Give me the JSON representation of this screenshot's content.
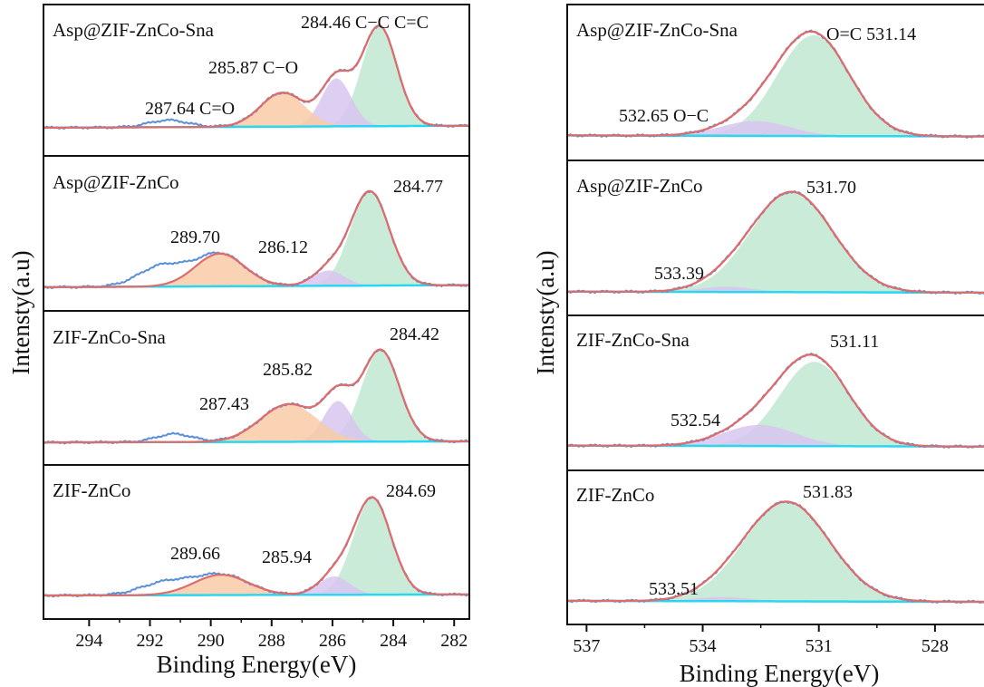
{
  "colors": {
    "raw": "#5b8fd6",
    "envelope": "#e06b6b",
    "background": "#2ad7f0",
    "c_cc": "#bfe8d0",
    "c_co": "#d8c6f0",
    "c_c_eq_o": "#f8cba7",
    "o_c_eq_o": "#bfe8d0",
    "o_c_o": "#d8c6f0"
  },
  "panels": [
    {
      "id": "C1s",
      "ylabel": "Intensty(a.u)",
      "xlabel": "Binding Energy(eV)",
      "xticks": [
        294,
        292,
        290,
        288,
        286,
        284,
        282
      ],
      "xtick_labels": [
        "294",
        "292",
        "290",
        "288",
        "286",
        "284",
        "282"
      ],
      "xlim": [
        295.5,
        281.5
      ],
      "stacks": [
        {
          "label": "Asp@ZIF-ZnCo-Sna"
        },
        {
          "label": "Asp@ZIF-ZnCo"
        },
        {
          "label": "ZIF-ZnCo-Sna"
        },
        {
          "label": "ZIF-ZnCo"
        }
      ]
    },
    {
      "id": "O1s",
      "ylabel": "Intensty(a.u)",
      "xlabel": "Binding Energy(eV)",
      "xticks": [
        537,
        534,
        531,
        528
      ],
      "xtick_labels": [
        "537",
        "534",
        "531",
        "528"
      ],
      "xlim": [
        537.5,
        526.5
      ],
      "stacks": [
        {
          "label": "Asp@ZIF-ZnCo-Sna"
        },
        {
          "label": "Asp@ZIF-ZnCo"
        },
        {
          "label": "ZIF-ZnCo-Sna"
        },
        {
          "label": "ZIF-ZnCo"
        }
      ]
    }
  ],
  "chart_data": [
    {
      "type": "area",
      "xlabel": "Binding Energy(eV)",
      "ylabel": "Intensty(a.u)",
      "xlim": [
        295.5,
        281.5
      ],
      "x_reversed": true,
      "grid": false,
      "stacks": [
        {
          "sample": "Asp@ZIF-ZnCo-Sna",
          "baseline": [
            0.1,
            0.12
          ],
          "peaks": [
            {
              "center": 284.46,
              "amp": 1.0,
              "fwhm": 1.35,
              "label": "284.46 C−C C=C",
              "fill": "c_cc"
            },
            {
              "center": 285.87,
              "amp": 0.48,
              "fwhm": 1.15,
              "label": "285.87 C−O",
              "fill": "c_co"
            },
            {
              "center": 287.64,
              "amp": 0.34,
              "fwhm": 1.7,
              "label": "287.64 C=O",
              "fill": "c_c_eq_o"
            }
          ],
          "raw_extra": [
            {
              "center": 291.4,
              "amp": 0.07,
              "fwhm": 1.5
            }
          ]
        },
        {
          "sample": "Asp@ZIF-ZnCo",
          "baseline": [
            0.05,
            0.07
          ],
          "peaks": [
            {
              "center": 284.77,
              "amp": 0.92,
              "fwhm": 1.5,
              "label": "284.77",
              "fill": "c_cc"
            },
            {
              "center": 286.12,
              "amp": 0.15,
              "fwhm": 1.2,
              "label": "286.12",
              "fill": "c_co"
            },
            {
              "center": 289.7,
              "amp": 0.32,
              "fwhm": 1.9,
              "label": "289.70",
              "fill": "c_c_eq_o"
            }
          ],
          "raw_extra": [
            {
              "center": 291.6,
              "amp": 0.2,
              "fwhm": 1.8
            }
          ]
        },
        {
          "sample": "ZIF-ZnCo-Sna",
          "baseline": [
            0.04,
            0.05
          ],
          "peaks": [
            {
              "center": 284.42,
              "amp": 0.9,
              "fwhm": 1.45,
              "label": "284.42",
              "fill": "c_cc"
            },
            {
              "center": 285.82,
              "amp": 0.4,
              "fwhm": 1.1,
              "label": "285.82",
              "fill": "c_co"
            },
            {
              "center": 287.43,
              "amp": 0.37,
              "fwhm": 2.2,
              "label": "287.43",
              "fill": "c_c_eq_o"
            }
          ],
          "raw_extra": [
            {
              "center": 291.2,
              "amp": 0.08,
              "fwhm": 1.4
            }
          ]
        },
        {
          "sample": "ZIF-ZnCo",
          "baseline": [
            0.05,
            0.06
          ],
          "peaks": [
            {
              "center": 284.69,
              "amp": 0.95,
              "fwhm": 1.45,
              "label": "284.69",
              "fill": "c_cc"
            },
            {
              "center": 285.94,
              "amp": 0.18,
              "fwhm": 1.2,
              "label": "285.94",
              "fill": "c_co"
            },
            {
              "center": 289.66,
              "amp": 0.2,
              "fwhm": 2.1,
              "label": "289.66",
              "fill": "c_c_eq_o"
            }
          ],
          "raw_extra": [
            {
              "center": 291.5,
              "amp": 0.12,
              "fwhm": 1.9
            }
          ]
        }
      ]
    },
    {
      "type": "area",
      "xlabel": "Binding Energy(eV)",
      "ylabel": "Intensty(a.u)",
      "xlim": [
        537.5,
        526.5
      ],
      "x_reversed": true,
      "grid": false,
      "stacks": [
        {
          "sample": "Asp@ZIF-ZnCo-Sna",
          "baseline": [
            0.03,
            0.02
          ],
          "peaks": [
            {
              "center": 531.14,
              "amp": 0.95,
              "fwhm": 2.2,
              "label": "O=C 531.14",
              "fill": "o_c_eq_o"
            },
            {
              "center": 532.65,
              "amp": 0.14,
              "fwhm": 2.1,
              "label": "532.65 O−C",
              "fill": "o_c_o"
            }
          ],
          "raw_extra": []
        },
        {
          "sample": "Asp@ZIF-ZnCo",
          "baseline": [
            0.02,
            0.01
          ],
          "peaks": [
            {
              "center": 531.7,
              "amp": 0.95,
              "fwhm": 2.5,
              "label": "531.70",
              "fill": "o_c_eq_o"
            },
            {
              "center": 533.39,
              "amp": 0.05,
              "fwhm": 1.6,
              "label": "533.39",
              "fill": "o_c_o"
            }
          ],
          "raw_extra": []
        },
        {
          "sample": "ZIF-ZnCo-Sna",
          "baseline": [
            0.03,
            0.02
          ],
          "peaks": [
            {
              "center": 531.11,
              "amp": 0.8,
              "fwhm": 2.1,
              "label": "531.11",
              "fill": "o_c_eq_o"
            },
            {
              "center": 532.54,
              "amp": 0.2,
              "fwhm": 2.2,
              "label": "532.54",
              "fill": "o_c_o"
            }
          ],
          "raw_extra": []
        },
        {
          "sample": "ZIF-ZnCo",
          "baseline": [
            0.02,
            0.01
          ],
          "peaks": [
            {
              "center": 531.83,
              "amp": 0.95,
              "fwhm": 2.6,
              "label": "531.83",
              "fill": "o_c_eq_o"
            },
            {
              "center": 533.51,
              "amp": 0.04,
              "fwhm": 1.6,
              "label": "533.51",
              "fill": "o_c_o"
            }
          ],
          "raw_extra": []
        }
      ]
    }
  ]
}
